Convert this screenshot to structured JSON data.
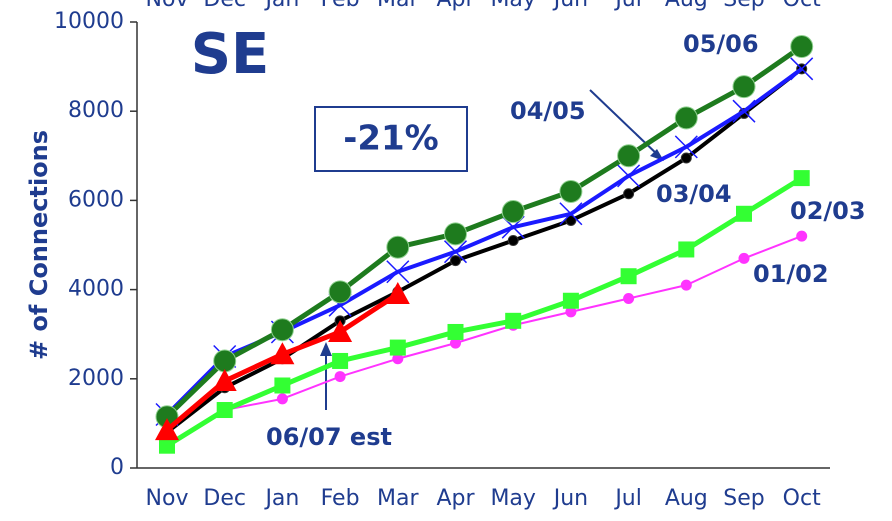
{
  "chart_data": {
    "type": "line",
    "title": "SE",
    "annotations": [
      "-21%"
    ],
    "y_label": "# of Connections",
    "categories": [
      "Nov",
      "Dec",
      "Jan",
      "Feb",
      "Mar",
      "Apr",
      "May",
      "Jun",
      "Jul",
      "Aug",
      "Sep",
      "Oct"
    ],
    "ylim": [
      0,
      10000
    ],
    "yticks": [
      0,
      2000,
      4000,
      6000,
      8000,
      10000
    ],
    "series": [
      {
        "name": "01/02",
        "color": "#ff33ff",
        "marker": "dot",
        "values": [
          null,
          1300,
          1550,
          2050,
          2450,
          2800,
          3200,
          3500,
          3800,
          4100,
          4700,
          5200
        ]
      },
      {
        "name": "02/03",
        "color": "#33ff33",
        "marker": "square",
        "values": [
          500,
          1300,
          1850,
          2400,
          2700,
          3050,
          3300,
          3750,
          4300,
          4900,
          5700,
          6500
        ]
      },
      {
        "name": "03/04",
        "color": "#000000",
        "marker": "smalldot",
        "values": [
          800,
          1800,
          2450,
          3300,
          3950,
          4650,
          5100,
          5550,
          6150,
          6950,
          7950,
          8950
        ]
      },
      {
        "name": "04/05",
        "color": "#1a1aff",
        "marker": "cross",
        "values": [
          1200,
          2500,
          3050,
          3650,
          4400,
          4850,
          5400,
          5700,
          6550,
          7200,
          8000,
          8950
        ]
      },
      {
        "name": "05/06",
        "color": "#1e7b1e",
        "marker": "circle",
        "values": [
          1150,
          2400,
          3100,
          3950,
          4950,
          5250,
          5750,
          6200,
          7000,
          7850,
          8550,
          9450
        ]
      },
      {
        "name": "06/07 est",
        "color": "#ff0000",
        "marker": "triangle",
        "values": [
          850,
          1950,
          2550,
          3050,
          3900,
          null,
          null,
          null,
          null,
          null,
          null,
          null
        ]
      }
    ]
  }
}
